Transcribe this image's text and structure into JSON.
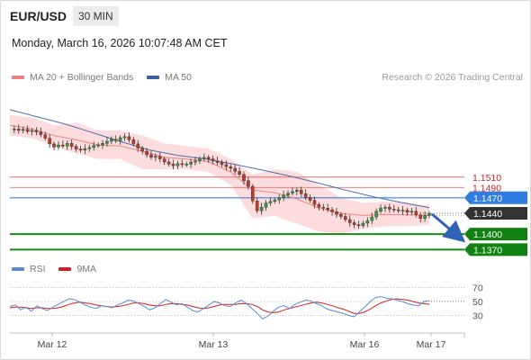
{
  "header": {
    "symbol": "EUR/USD",
    "timeframe": "30 MIN",
    "datetime": "Monday, March 16, 2026 10:07:48 AM CET"
  },
  "legend": {
    "ma20_label": "MA 20 + Bollinger Bands",
    "ma50_label": "MA 50",
    "rsi_label": "RSI",
    "rsi_ma_label": "9MA",
    "credit": "Research © 2026 Trading Central"
  },
  "colors": {
    "ma20": "#f08080",
    "bollinger_fill": "#fbd3d3",
    "ma50": "#4a6fb5",
    "bull": "#2e9e3e",
    "bear": "#c0392b",
    "resistance": "#e36f6f",
    "pivot": "#3f7fe0",
    "support": "#158a15",
    "current": "#333333",
    "arrow": "#2f63b5",
    "rsi": "#5a8ad8",
    "rsi_ma": "#d21f1f"
  },
  "chart_data": {
    "type": "line",
    "title": "EUR/USD",
    "x": [
      "Mar 12",
      "Mar 13",
      "Mar 16",
      "Mar 17"
    ],
    "ylim": [
      1.1355,
      1.1685
    ],
    "levels": [
      {
        "label": "1.1510",
        "value": 1.151,
        "kind": "resistance"
      },
      {
        "label": "1.1490",
        "value": 1.149,
        "kind": "resistance"
      },
      {
        "label": "1.1470",
        "value": 1.147,
        "kind": "pivot"
      },
      {
        "label": "1.1440",
        "value": 1.144,
        "kind": "current"
      },
      {
        "label": "1.1400",
        "value": 1.14,
        "kind": "support"
      },
      {
        "label": "1.1370",
        "value": 1.137,
        "kind": "support"
      }
    ],
    "price_path": [
      1.1602,
      1.1603,
      1.16,
      1.1602,
      1.1598,
      1.16,
      1.1597,
      1.1592,
      1.1585,
      1.1574,
      1.1568,
      1.1572,
      1.157,
      1.1575,
      1.1569,
      1.1564,
      1.1562,
      1.1565,
      1.1567,
      1.1571,
      1.1572,
      1.1575,
      1.1579,
      1.1583,
      1.158,
      1.1586,
      1.1588,
      1.1582,
      1.1574,
      1.1566,
      1.156,
      1.1553,
      1.1548,
      1.155,
      1.1545,
      1.1539,
      1.1535,
      1.1532,
      1.1536,
      1.1534,
      1.1535,
      1.1539,
      1.1541,
      1.1545,
      1.1548,
      1.1545,
      1.1541,
      1.1538,
      1.1534,
      1.153,
      1.1527,
      1.1521,
      1.1515,
      1.1503,
      1.1492,
      1.1464,
      1.1445,
      1.1452,
      1.146,
      1.1463,
      1.1466,
      1.147,
      1.1475,
      1.1479,
      1.1482,
      1.1485,
      1.1478,
      1.1471,
      1.1465,
      1.1457,
      1.1452,
      1.145,
      1.1447,
      1.1443,
      1.1438,
      1.1434,
      1.1428,
      1.1422,
      1.1418,
      1.1416,
      1.1421,
      1.1426,
      1.1433,
      1.1444,
      1.145,
      1.1452,
      1.1448,
      1.1447,
      1.1445,
      1.1446,
      1.1442,
      1.1444,
      1.1437,
      1.143,
      1.1436,
      1.144
    ],
    "ma50_path": [
      1.164,
      1.1626,
      1.1612,
      1.1595,
      1.1578,
      1.1562,
      1.1552,
      1.1545,
      1.1535,
      1.1524,
      1.1512,
      1.1499,
      1.1485,
      1.1472,
      1.1461,
      1.1451
    ],
    "band_upper": [
      1.163,
      1.1625,
      1.161,
      1.1615,
      1.16,
      1.16,
      1.159,
      1.1575,
      1.157,
      1.1565,
      1.1545,
      1.1515,
      1.1525,
      1.152,
      1.1495,
      1.147,
      1.146,
      1.1463,
      1.146,
      1.1455
    ],
    "band_lower": [
      1.159,
      1.1585,
      1.157,
      1.1555,
      1.1545,
      1.1545,
      1.1525,
      1.1525,
      1.1525,
      1.152,
      1.1495,
      1.143,
      1.1435,
      1.142,
      1.1405,
      1.14,
      1.141,
      1.1415,
      1.1415,
      1.1418
    ],
    "ma20_path": [
      1.161,
      1.1603,
      1.159,
      1.1582,
      1.1572,
      1.157,
      1.156,
      1.1548,
      1.1545,
      1.154,
      1.152,
      1.1485,
      1.148,
      1.1468,
      1.145,
      1.144,
      1.1436,
      1.1438,
      1.1437,
      1.1436
    ],
    "forecast": {
      "from": 1.1442,
      "to": 1.138
    },
    "rsi": {
      "levels": [
        70,
        50,
        30
      ],
      "ylim": [
        15,
        80
      ],
      "rsi_values": [
        43,
        45,
        38,
        42,
        36,
        44,
        40,
        37,
        42,
        46,
        50,
        54,
        53,
        49,
        45,
        42,
        40,
        44,
        43,
        41,
        45,
        48,
        52,
        51,
        47,
        43,
        38,
        41,
        47,
        53,
        49,
        45,
        47,
        42,
        37,
        35,
        40,
        45,
        50,
        48,
        44,
        43,
        48,
        52,
        47,
        40,
        33,
        25,
        29,
        36,
        42,
        44,
        40,
        46,
        49,
        52,
        51,
        47,
        44,
        39,
        37,
        35,
        33,
        30,
        28,
        35,
        42,
        50,
        56,
        57,
        55,
        54,
        52,
        50,
        47,
        45,
        44,
        50,
        51
      ],
      "ma_values": [
        41,
        42,
        42,
        41,
        40,
        41,
        41,
        40,
        40,
        41,
        43,
        46,
        48,
        49,
        48,
        47,
        45,
        44,
        43,
        42,
        43,
        44,
        46,
        48,
        48,
        47,
        45,
        44,
        44,
        46,
        47,
        47,
        46,
        45,
        43,
        41,
        40,
        41,
        43,
        45,
        46,
        46,
        46,
        47,
        47,
        46,
        43,
        38,
        35,
        34,
        35,
        38,
        40,
        42,
        44,
        46,
        48,
        49,
        48,
        46,
        44,
        41,
        39,
        36,
        33,
        33,
        35,
        39,
        44,
        48,
        51,
        53,
        54,
        53,
        52,
        50,
        48,
        47,
        46
      ]
    }
  }
}
